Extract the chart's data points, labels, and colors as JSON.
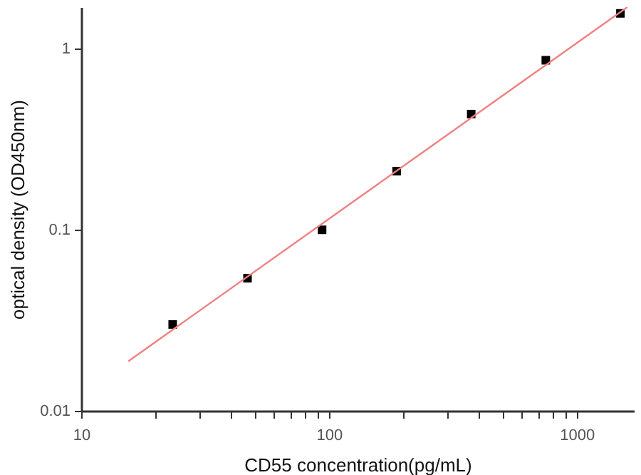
{
  "chart_data": {
    "type": "scatter",
    "xlabel": "CD55 concentration(pg/mL)",
    "ylabel": "optical density (OD450nm)",
    "log": "xy",
    "grid": false,
    "xlim": [
      10,
      1700
    ],
    "ylim": [
      0.01,
      1.7
    ],
    "xticks": [
      10,
      {
        "value": 20,
        "label": null
      },
      {
        "value": 30,
        "label": null
      },
      {
        "value": 40,
        "label": null
      },
      {
        "value": 50,
        "label": null
      },
      {
        "value": 60,
        "label": null
      },
      {
        "value": 70,
        "label": null
      },
      {
        "value": 80,
        "label": null
      },
      {
        "value": 90,
        "label": null
      },
      100,
      {
        "value": 200,
        "label": null
      },
      {
        "value": 300,
        "label": null
      },
      {
        "value": 400,
        "label": null
      },
      {
        "value": 500,
        "label": null
      },
      {
        "value": 600,
        "label": null
      },
      {
        "value": 700,
        "label": null
      },
      {
        "value": 800,
        "label": null
      },
      {
        "value": 900,
        "label": null
      },
      1000
    ],
    "yticks": [
      0.01,
      0.1,
      1
    ],
    "series": [
      {
        "color": "#000000",
        "marker": "square",
        "x": [
          23.4,
          46.9,
          93.8,
          187.5,
          375,
          750,
          1500
        ],
        "values": [
          0.03,
          0.054,
          0.1,
          0.211,
          0.436,
          0.865,
          1.57
        ]
      },
      {
        "type": "line",
        "color": "#f08080",
        "marker": "none",
        "x": [
          15.5,
          1600
        ],
        "values": [
          0.0188,
          1.7
        ]
      }
    ]
  }
}
